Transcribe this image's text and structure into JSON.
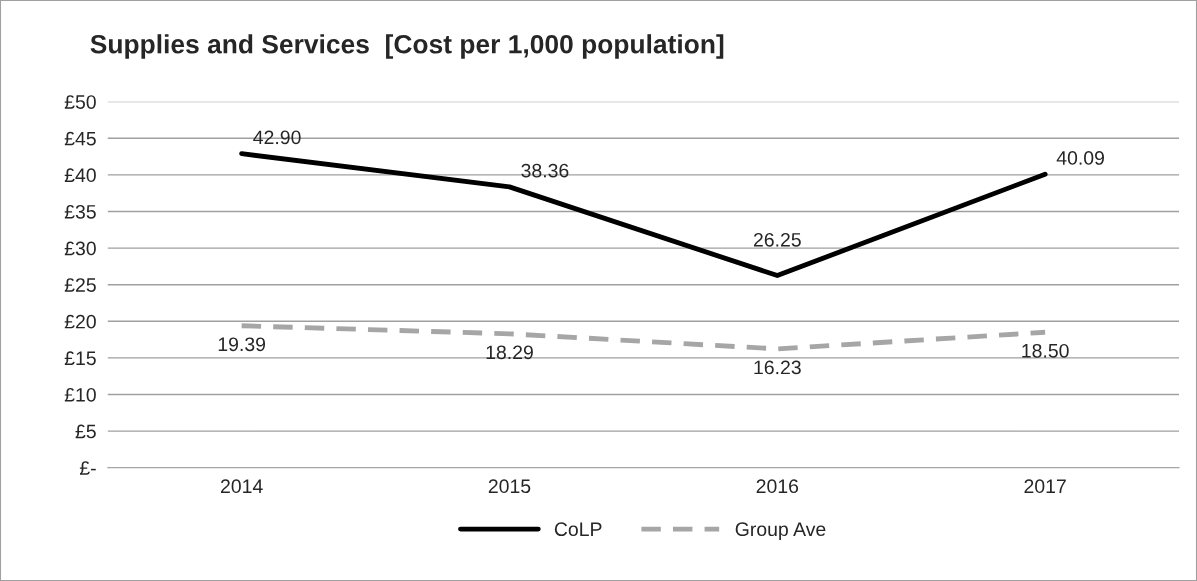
{
  "chart_data": {
    "type": "line",
    "title": "Supplies and Services  [Cost per 1,000 population]",
    "categories": [
      "2014",
      "2015",
      "2016",
      "2017"
    ],
    "series": [
      {
        "name": "CoLP",
        "color": "#000000",
        "line_style": "solid",
        "values": [
          42.9,
          38.36,
          26.25,
          40.09
        ],
        "value_labels": [
          "42.90",
          "38.36",
          "26.25",
          "40.09"
        ]
      },
      {
        "name": "Group Ave",
        "color": "#a6a6a6",
        "line_style": "dashed",
        "values": [
          19.39,
          18.29,
          16.23,
          18.5
        ],
        "value_labels": [
          "19.39",
          "18.29",
          "16.23",
          "18.50"
        ]
      }
    ],
    "ylim": [
      0,
      50
    ],
    "yticks": [
      {
        "value": 0,
        "label": "£-"
      },
      {
        "value": 5,
        "label": "£5"
      },
      {
        "value": 10,
        "label": "£10"
      },
      {
        "value": 15,
        "label": "£15"
      },
      {
        "value": 20,
        "label": "£20"
      },
      {
        "value": 25,
        "label": "£25"
      },
      {
        "value": 30,
        "label": "£30"
      },
      {
        "value": 35,
        "label": "£35"
      },
      {
        "value": 40,
        "label": "£40"
      },
      {
        "value": 45,
        "label": "£45"
      },
      {
        "value": 50,
        "label": "£50"
      }
    ],
    "grid": "y",
    "legend": "bottom",
    "marker": "none"
  }
}
